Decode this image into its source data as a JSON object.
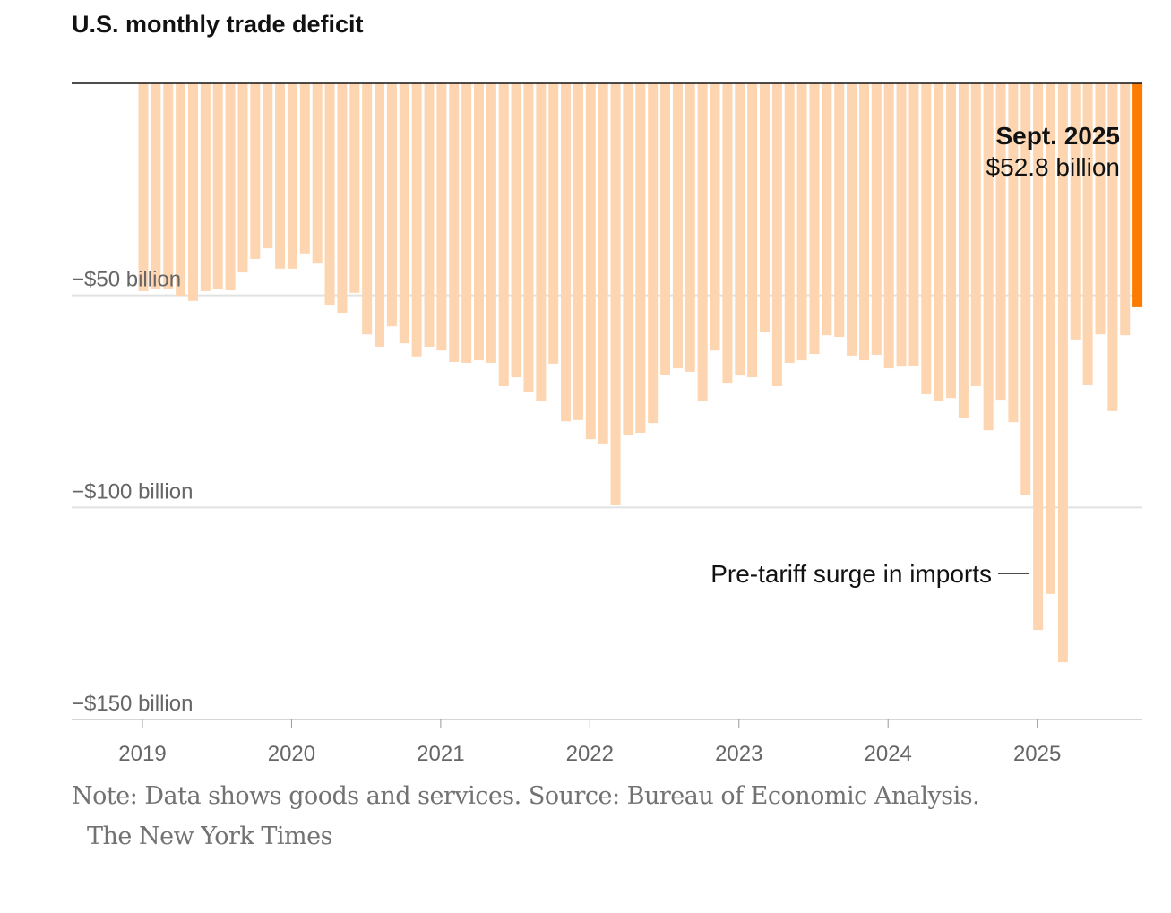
{
  "chart_data": {
    "type": "bar",
    "title": "U.S. monthly trade deficit",
    "ylabel": "",
    "xlabel": "",
    "ylim": [
      -150,
      0
    ],
    "yticks": [
      {
        "value": -50,
        "label": "−$50 billion"
      },
      {
        "value": -100,
        "label": "−$100 billion"
      },
      {
        "value": -150,
        "label": "−$150 billion"
      }
    ],
    "xticks": [
      "2019",
      "2020",
      "2021",
      "2022",
      "2023",
      "2024",
      "2025"
    ],
    "start_month": "2019-01",
    "end_month": "2025-09",
    "values": [
      -49.0,
      -48.4,
      -48.4,
      -50.1,
      -51.3,
      -49.0,
      -48.6,
      -48.8,
      -44.6,
      -41.4,
      -38.9,
      -43.7,
      -43.7,
      -40.1,
      -42.5,
      -52.2,
      -54.1,
      -49.4,
      -59.2,
      -62.1,
      -57.3,
      -61.3,
      -64.4,
      -62.1,
      -63.0,
      -65.7,
      -65.9,
      -65.3,
      -65.9,
      -71.4,
      -69.3,
      -72.7,
      -74.8,
      -66.1,
      -79.7,
      -79.4,
      -83.9,
      -84.9,
      -99.5,
      -83.0,
      -82.4,
      -80.1,
      -68.7,
      -67.2,
      -68.0,
      -75.0,
      -63.0,
      -70.8,
      -68.9,
      -69.3,
      -58.7,
      -71.4,
      -65.9,
      -65.3,
      -63.8,
      -59.4,
      -59.8,
      -64.2,
      -65.3,
      -64.0,
      -67.2,
      -66.8,
      -66.6,
      -73.3,
      -74.8,
      -74.2,
      -78.8,
      -71.4,
      -81.8,
      -74.6,
      -79.9,
      -97.0,
      -128.9,
      -120.4,
      -136.5,
      -60.4,
      -71.2,
      -59.2,
      -77.3,
      -59.4,
      -52.8
    ],
    "colors": {
      "bar": "#fdd5b0",
      "highlight": "#fb7c00",
      "axis": "#121212",
      "grid": "#e2e2e2"
    },
    "grid": true,
    "annotations": {
      "latest_label": "Sept. 2025",
      "latest_value": "$52.8 billion",
      "surge_label": "Pre-tariff surge in imports"
    }
  },
  "footer": {
    "note": "Note: Data shows goods and services.  Source: Bureau of Economic Analysis.",
    "credit": "The New York Times"
  }
}
